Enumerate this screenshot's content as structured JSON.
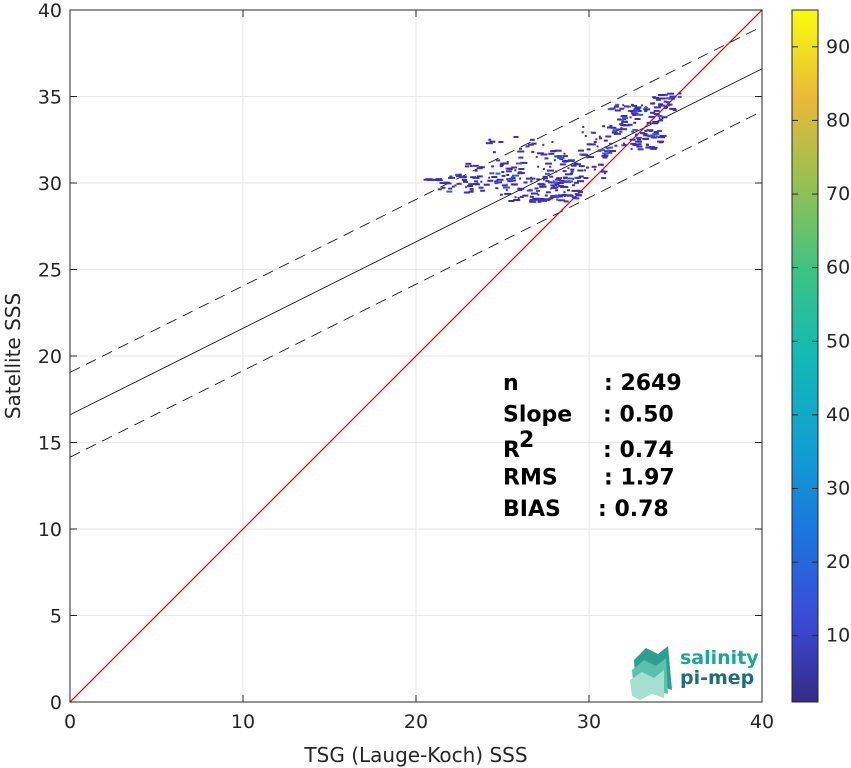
{
  "chart_data": {
    "type": "scatter",
    "title": "",
    "xlabel": "TSG (Lauge-Koch) SSS",
    "ylabel": "Satellite SSS",
    "xlim": [
      0,
      40
    ],
    "ylim": [
      0,
      40
    ],
    "x_ticks": [
      "0",
      "10",
      "20",
      "30",
      "40"
    ],
    "y_ticks": [
      "0",
      "5",
      "10",
      "15",
      "20",
      "25",
      "30",
      "35",
      "40"
    ],
    "grid": true,
    "colorbar": {
      "range": [
        1,
        95
      ],
      "ticks": [
        "10",
        "20",
        "30",
        "40",
        "50",
        "60",
        "70",
        "80",
        "90"
      ],
      "colormap": "parula"
    },
    "identity_line": {
      "slope": 1,
      "intercept": 0,
      "color": "#ff0000"
    },
    "regression_line": {
      "slope": 0.5,
      "intercept": 16.6,
      "color": "#000000"
    },
    "confidence_lines": [
      {
        "slope": 0.5,
        "intercept": 19.05,
        "style": "dashed"
      },
      {
        "slope": 0.5,
        "intercept": 14.15,
        "style": "dashed"
      }
    ],
    "point_clusters": [
      {
        "x": [
          20.3,
          21.5
        ],
        "y": [
          30.2,
          30.3
        ],
        "count": 8
      },
      {
        "x": [
          21.0,
          24.0
        ],
        "y": [
          29.4,
          30.6
        ],
        "count": 30
      },
      {
        "x": [
          22.5,
          26.0
        ],
        "y": [
          29.6,
          31.2
        ],
        "count": 45
      },
      {
        "x": [
          24.5,
          29.5
        ],
        "y": [
          29.0,
          31.8
        ],
        "count": 90
      },
      {
        "x": [
          26.5,
          29.5
        ],
        "y": [
          28.9,
          30.5
        ],
        "count": 60
      },
      {
        "x": [
          24.0,
          28.0
        ],
        "y": [
          31.8,
          32.8
        ],
        "count": 16
      },
      {
        "x": [
          27.0,
          31.0
        ],
        "y": [
          30.2,
          32.0
        ],
        "count": 40
      },
      {
        "x": [
          29.5,
          31.5
        ],
        "y": [
          31.5,
          33.4
        ],
        "count": 40
      },
      {
        "x": [
          31.5,
          34.2
        ],
        "y": [
          32.0,
          34.3
        ],
        "count": 90
      },
      {
        "x": [
          30.8,
          33.3
        ],
        "y": [
          34.2,
          34.6
        ],
        "count": 20
      },
      {
        "x": [
          33.5,
          35.3
        ],
        "y": [
          34.0,
          35.3
        ],
        "count": 28
      }
    ],
    "stats": [
      {
        "label": "n",
        "sup": "",
        "value": ": 2649"
      },
      {
        "label": "Slope",
        "sup": "",
        "value": ": 0.50"
      },
      {
        "label": "R",
        "sup": "2",
        "value": ": 0.74"
      },
      {
        "label": "RMS",
        "sup": "",
        "value": ": 1.97"
      },
      {
        "label": "BIAS",
        "sup": "",
        "value": ": 0.78"
      }
    ]
  },
  "logo": {
    "line1": "salinity",
    "line2": "pi-mep"
  },
  "colors": {
    "identity": "#ff0000",
    "regression": "#000000",
    "points": "#3a2fb8",
    "grid": "#e6e6e6",
    "logo_teal": "#1aa795",
    "logo_dark": "#1f6f78"
  }
}
